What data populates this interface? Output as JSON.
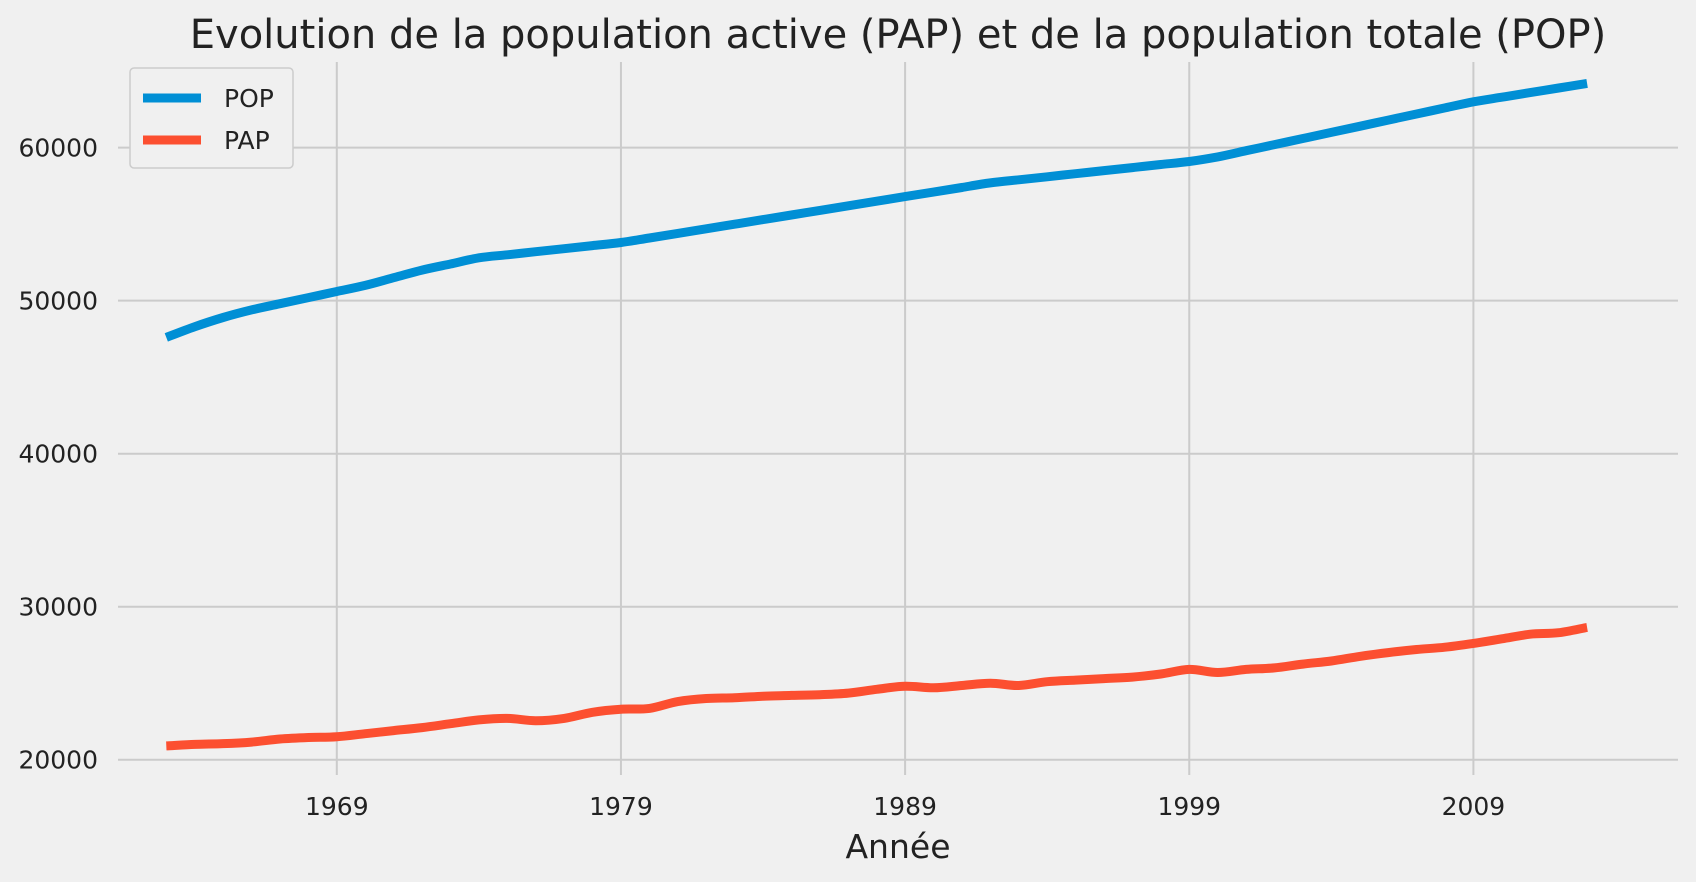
{
  "chart_data": {
    "type": "line",
    "title": "Evolution de la population active (PAP) et de la population totale (POP)",
    "xlabel": "Année",
    "ylabel": "",
    "xlim": [
      1961.3,
      2016.2
    ],
    "ylim": [
      19000,
      65600
    ],
    "xticks": [
      1969,
      1979,
      1989,
      1999,
      2009
    ],
    "yticks": [
      20000,
      30000,
      40000,
      50000,
      60000
    ],
    "grid": true,
    "legend_position": "upper-left",
    "x": [
      1963,
      1964,
      1965,
      1966,
      1967,
      1968,
      1969,
      1970,
      1971,
      1972,
      1973,
      1974,
      1975,
      1976,
      1977,
      1978,
      1979,
      1980,
      1981,
      1982,
      1983,
      1984,
      1985,
      1986,
      1987,
      1988,
      1989,
      1990,
      1991,
      1992,
      1993,
      1994,
      1995,
      1996,
      1997,
      1998,
      1999,
      2000,
      2001,
      2002,
      2003,
      2004,
      2005,
      2006,
      2007,
      2008,
      2009,
      2010,
      2011,
      2012,
      2013
    ],
    "series": [
      {
        "name": "POP",
        "color": "#008fd5",
        "values": [
          47600,
          48300,
          48900,
          49400,
          49800,
          50200,
          50600,
          51000,
          51500,
          52000,
          52400,
          52800,
          53000,
          53200,
          53400,
          53600,
          53800,
          54100,
          54400,
          54700,
          55000,
          55300,
          55600,
          55900,
          56200,
          56500,
          56800,
          57100,
          57400,
          57700,
          57900,
          58100,
          58300,
          58500,
          58700,
          58900,
          59100,
          59400,
          59800,
          60200,
          60600,
          61000,
          61400,
          61800,
          62200,
          62600,
          63000,
          63300,
          63600,
          63900,
          64200
        ]
      },
      {
        "name": "PAP",
        "color": "#fc4f30",
        "values": [
          20900,
          21000,
          21050,
          21150,
          21350,
          21450,
          21500,
          21700,
          21900,
          22100,
          22350,
          22600,
          22700,
          22550,
          22700,
          23100,
          23300,
          23350,
          23800,
          24000,
          24050,
          24150,
          24200,
          24250,
          24350,
          24600,
          24800,
          24700,
          24850,
          25000,
          24850,
          25100,
          25200,
          25300,
          25400,
          25600,
          25900,
          25700,
          25900,
          26000,
          26250,
          26450,
          26750,
          27000,
          27200,
          27350,
          27600,
          27900,
          28200,
          28300,
          28650
        ]
      }
    ]
  }
}
